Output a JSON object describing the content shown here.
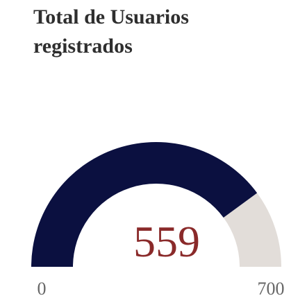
{
  "chart_data": {
    "type": "gauge",
    "title": "Total de Usuarios registrados",
    "value": 559,
    "ylim": [
      0,
      700
    ],
    "color": "#0b1040",
    "track_color": "#e2ddd9"
  }
}
